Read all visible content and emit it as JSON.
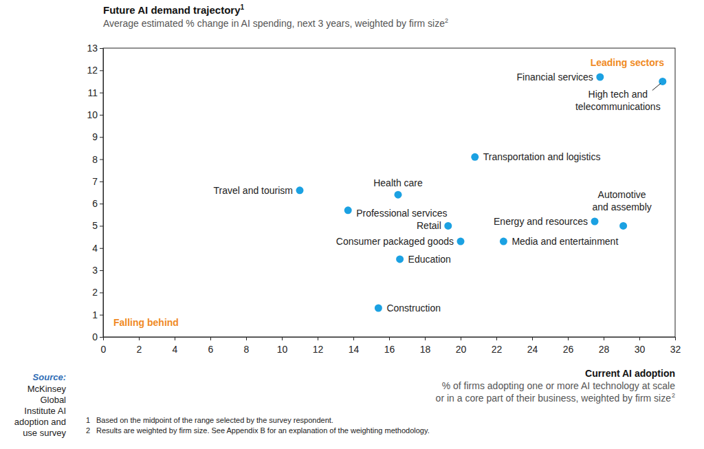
{
  "chart_data": {
    "type": "scatter",
    "title": "Future AI demand trajectory",
    "title_mark": "1",
    "subtitle": "Average estimated % change in AI spending, next 3 years, weighted by firm size",
    "subtitle_mark": "2",
    "x_label": "Current AI adoption",
    "x_sublabel": [
      "% of firms adopting one or more AI technology at scale",
      "or in a core part of their business, weighted by firm size"
    ],
    "x_sublabel_mark": "2",
    "annotations": [
      "Leading sectors",
      "Falling behind"
    ],
    "source": {
      "label": "Source:",
      "lines": [
        "McKinsey",
        "Global",
        "Institute AI",
        "adoption and",
        "use survey"
      ]
    },
    "footnotes": [
      {
        "mark": "1",
        "text": "Based on the midpoint of the range selected by the survey respondent."
      },
      {
        "mark": "2",
        "text": "Results are weighted by firm size. See Appendix B for an explanation of the weighting methodology."
      }
    ],
    "labels": [
      [
        "Financial services"
      ],
      [
        "High tech and",
        "telecommunications"
      ],
      [
        "Transportation and logistics"
      ],
      [
        "Travel and tourism"
      ],
      [
        "Health care"
      ],
      [
        "Professional services"
      ],
      [
        "Retail"
      ],
      [
        "Consumer packaged goods"
      ],
      [
        "Education"
      ],
      [
        "Construction"
      ],
      [
        "Energy and resources"
      ],
      [
        "Automotive",
        "and assembly"
      ],
      [
        "Media and entertainment"
      ]
    ],
    "x": [
      27.8,
      31.3,
      20.8,
      11.0,
      16.5,
      13.7,
      19.3,
      20.0,
      16.6,
      15.4,
      27.5,
      29.1,
      22.4
    ],
    "values": [
      11.7,
      11.5,
      8.1,
      6.6,
      6.4,
      5.7,
      5.0,
      4.3,
      3.5,
      1.3,
      5.2,
      5.0,
      4.3
    ],
    "color": "#1ba1e2",
    "marker": "circle",
    "xlim": [
      0,
      32
    ],
    "xticks": [
      0,
      2,
      4,
      6,
      8,
      10,
      12,
      14,
      16,
      18,
      20,
      22,
      24,
      26,
      28,
      30,
      32
    ],
    "ylim": [
      0,
      13
    ],
    "yticks": [
      0,
      1,
      2,
      3,
      4,
      5,
      6,
      7,
      8,
      9,
      10,
      11,
      12,
      13
    ],
    "grid": false
  }
}
